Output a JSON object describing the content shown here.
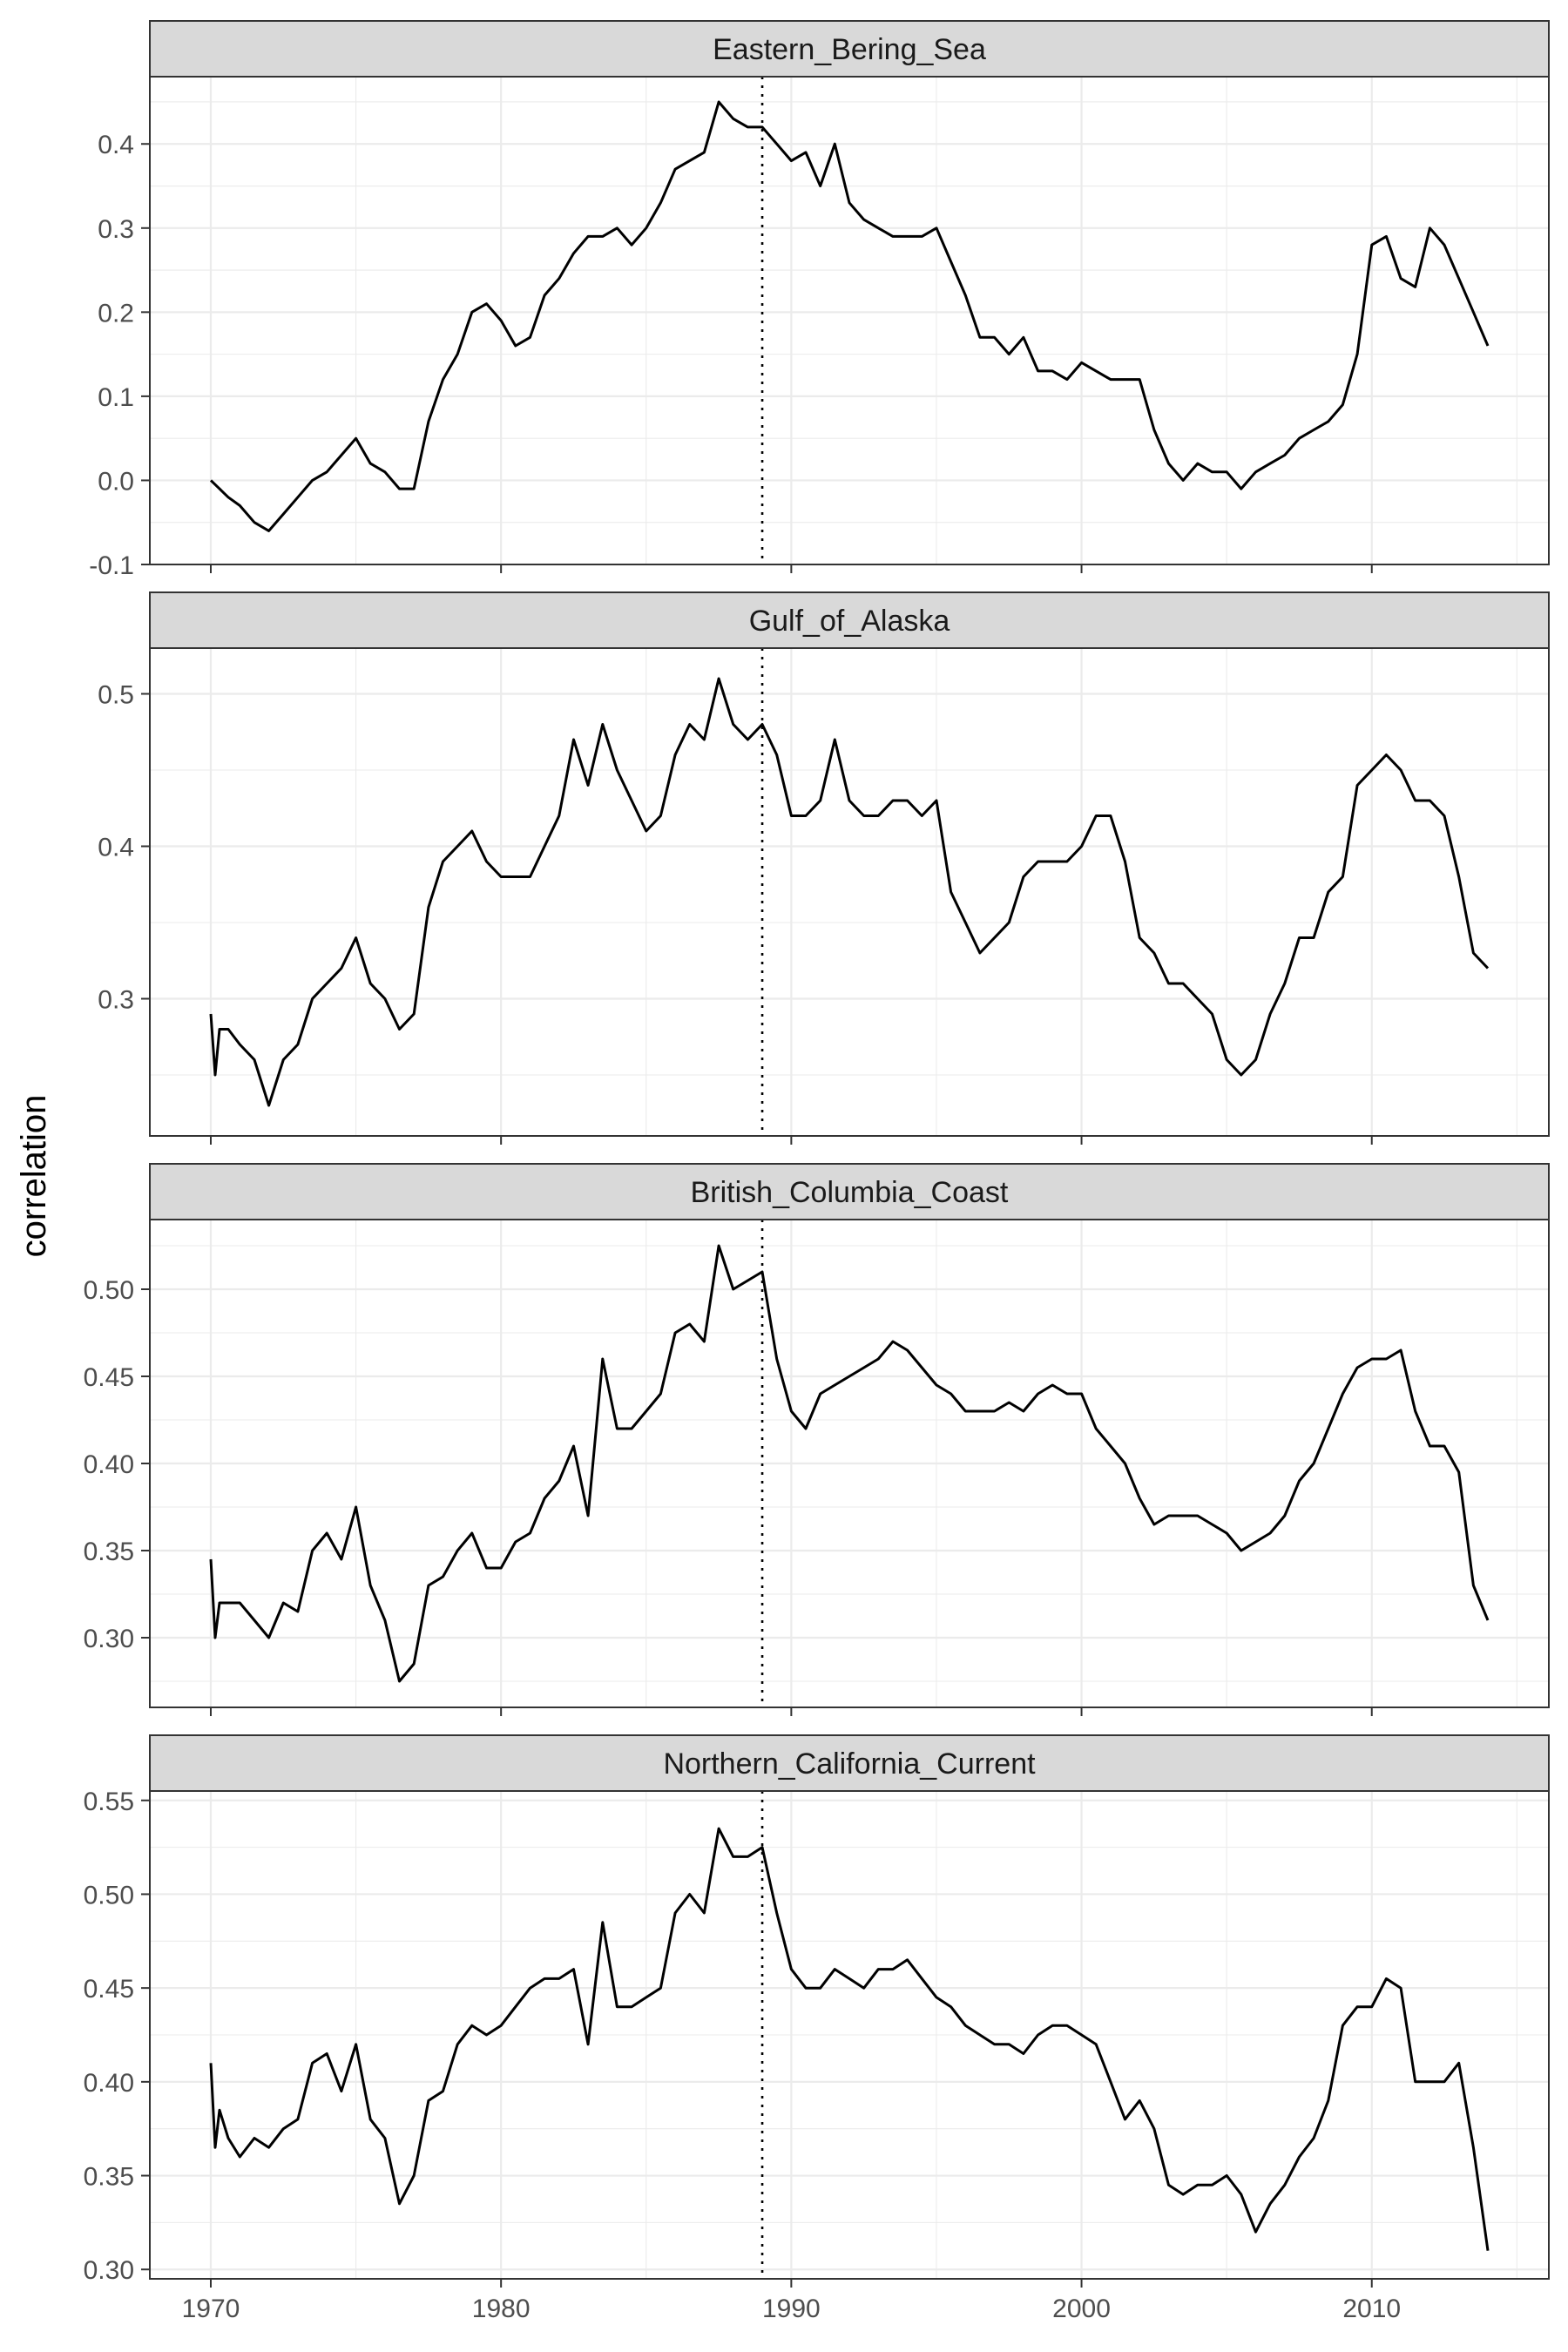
{
  "chart_data": {
    "type": "line",
    "layout": "facet-wrap, 1 column, free y scales",
    "xlabel": "",
    "ylabel": "correlation",
    "xlim": [
      1967.9,
      2016.1
    ],
    "x_ticks": [
      1970,
      1980,
      1990,
      2000,
      2010
    ],
    "vline_x": 1989,
    "vline_style": "dotted",
    "grid": true,
    "theme": "bw",
    "line_color": "#000000",
    "panels": [
      {
        "name": "Eastern_Bering_Sea",
        "ylim": [
          -0.1,
          0.48
        ],
        "y_ticks": [
          -0.1,
          0.0,
          0.1,
          0.2,
          0.3,
          0.4
        ],
        "y_tick_labels": [
          "-0.1",
          "0.0",
          "0.1",
          "0.2",
          "0.3",
          "0.4"
        ],
        "series": [
          {
            "x": [
              1970.0,
              1970.3,
              1970.6,
              1971.0,
              1971.5,
              1972.0,
              1972.5,
              1973.0,
              1973.5,
              1974.0,
              1974.5,
              1975.0,
              1975.5,
              1976.0,
              1976.5,
              1977.0,
              1977.5,
              1978.0,
              1978.5,
              1979.0,
              1979.5,
              1980.0,
              1980.5,
              1981.0,
              1981.5,
              1982.0,
              1982.5,
              1983.0,
              1983.5,
              1984.0,
              1984.5,
              1985.0,
              1985.5,
              1986.0,
              1986.5,
              1987.0,
              1987.5,
              1988.0,
              1988.5,
              1989.0,
              1989.5,
              1990.0,
              1990.5,
              1991.0,
              1991.5,
              1992.0,
              1992.5,
              1993.0,
              1993.5,
              1994.0,
              1994.5,
              1995.0,
              1995.5,
              1996.0,
              1996.5,
              1997.0,
              1997.5,
              1998.0,
              1998.5,
              1999.0,
              1999.5,
              2000.0,
              2000.5,
              2001.0,
              2001.5,
              2002.0,
              2002.5,
              2003.0,
              2003.5,
              2004.0,
              2004.5,
              2005.0,
              2005.5,
              2006.0,
              2006.5,
              2007.0,
              2007.5,
              2008.0,
              2008.5,
              2009.0,
              2009.5,
              2010.0,
              2010.5,
              2011.0,
              2011.5,
              2012.0,
              2012.5,
              2013.0,
              2013.5,
              2014.0
            ],
            "values": [
              0.0,
              -0.01,
              -0.02,
              -0.03,
              -0.05,
              -0.06,
              -0.04,
              -0.02,
              0.0,
              0.01,
              0.03,
              0.05,
              0.02,
              0.01,
              -0.01,
              -0.01,
              0.07,
              0.12,
              0.15,
              0.2,
              0.21,
              0.19,
              0.16,
              0.17,
              0.22,
              0.24,
              0.27,
              0.29,
              0.29,
              0.3,
              0.28,
              0.3,
              0.33,
              0.37,
              0.38,
              0.39,
              0.45,
              0.43,
              0.42,
              0.42,
              0.4,
              0.38,
              0.39,
              0.35,
              0.4,
              0.33,
              0.31,
              0.3,
              0.29,
              0.29,
              0.29,
              0.3,
              0.26,
              0.22,
              0.17,
              0.17,
              0.15,
              0.17,
              0.13,
              0.13,
              0.12,
              0.14,
              0.13,
              0.12,
              0.12,
              0.12,
              0.06,
              0.02,
              0.0,
              0.02,
              0.01,
              0.01,
              -0.01,
              0.01,
              0.02,
              0.03,
              0.05,
              0.06,
              0.07,
              0.09,
              0.15,
              0.28,
              0.29,
              0.24,
              0.23,
              0.3,
              0.28,
              0.24,
              0.2,
              0.16
            ]
          }
        ]
      },
      {
        "name": "Gulf_of_Alaska",
        "ylim": [
          0.21,
          0.53
        ],
        "y_ticks": [
          0.3,
          0.4,
          0.5
        ],
        "y_tick_labels": [
          "0.3",
          "0.4",
          "0.5"
        ],
        "series": [
          {
            "x": [
              1970.0,
              1970.15,
              1970.3,
              1970.6,
              1971.0,
              1971.5,
              1972.0,
              1972.5,
              1973.0,
              1973.5,
              1974.0,
              1974.5,
              1975.0,
              1975.5,
              1976.0,
              1976.5,
              1977.0,
              1977.5,
              1978.0,
              1978.5,
              1979.0,
              1979.5,
              1980.0,
              1980.5,
              1981.0,
              1981.5,
              1982.0,
              1982.5,
              1983.0,
              1983.5,
              1984.0,
              1984.5,
              1985.0,
              1985.5,
              1986.0,
              1986.5,
              1987.0,
              1987.5,
              1988.0,
              1988.5,
              1989.0,
              1989.5,
              1990.0,
              1990.5,
              1991.0,
              1991.5,
              1992.0,
              1992.5,
              1993.0,
              1993.5,
              1994.0,
              1994.5,
              1995.0,
              1995.5,
              1996.0,
              1996.5,
              1997.0,
              1997.5,
              1998.0,
              1998.5,
              1999.0,
              1999.5,
              2000.0,
              2000.5,
              2001.0,
              2001.5,
              2002.0,
              2002.5,
              2003.0,
              2003.5,
              2004.0,
              2004.5,
              2005.0,
              2005.5,
              2006.0,
              2006.5,
              2007.0,
              2007.5,
              2008.0,
              2008.5,
              2009.0,
              2009.5,
              2010.0,
              2010.5,
              2011.0,
              2011.5,
              2012.0,
              2012.5,
              2013.0,
              2013.5,
              2014.0
            ],
            "values": [
              0.29,
              0.25,
              0.28,
              0.28,
              0.27,
              0.26,
              0.23,
              0.26,
              0.27,
              0.3,
              0.31,
              0.32,
              0.34,
              0.31,
              0.3,
              0.28,
              0.29,
              0.36,
              0.39,
              0.4,
              0.41,
              0.39,
              0.38,
              0.38,
              0.38,
              0.4,
              0.42,
              0.47,
              0.44,
              0.48,
              0.45,
              0.43,
              0.41,
              0.42,
              0.46,
              0.48,
              0.47,
              0.51,
              0.48,
              0.47,
              0.48,
              0.46,
              0.42,
              0.42,
              0.43,
              0.47,
              0.43,
              0.42,
              0.42,
              0.43,
              0.43,
              0.42,
              0.43,
              0.37,
              0.35,
              0.33,
              0.34,
              0.35,
              0.38,
              0.39,
              0.39,
              0.39,
              0.4,
              0.42,
              0.42,
              0.39,
              0.34,
              0.33,
              0.31,
              0.31,
              0.3,
              0.29,
              0.26,
              0.25,
              0.26,
              0.29,
              0.31,
              0.34,
              0.34,
              0.37,
              0.38,
              0.44,
              0.45,
              0.46,
              0.45,
              0.43,
              0.43,
              0.42,
              0.38,
              0.33,
              0.32
            ]
          }
        ]
      },
      {
        "name": "British_Columbia_Coast",
        "ylim": [
          0.26,
          0.54
        ],
        "y_ticks": [
          0.3,
          0.35,
          0.4,
          0.45,
          0.5
        ],
        "y_tick_labels": [
          "0.30",
          "0.35",
          "0.40",
          "0.45",
          "0.50"
        ],
        "series": [
          {
            "x": [
              1970.0,
              1970.15,
              1970.3,
              1970.6,
              1971.0,
              1971.5,
              1972.0,
              1972.5,
              1973.0,
              1973.5,
              1974.0,
              1974.5,
              1975.0,
              1975.5,
              1976.0,
              1976.5,
              1977.0,
              1977.5,
              1978.0,
              1978.5,
              1979.0,
              1979.5,
              1980.0,
              1980.5,
              1981.0,
              1981.5,
              1982.0,
              1982.5,
              1983.0,
              1983.5,
              1984.0,
              1984.5,
              1985.0,
              1985.5,
              1986.0,
              1986.5,
              1987.0,
              1987.5,
              1988.0,
              1988.5,
              1989.0,
              1989.5,
              1990.0,
              1990.5,
              1991.0,
              1991.5,
              1992.0,
              1992.5,
              1993.0,
              1993.5,
              1994.0,
              1994.5,
              1995.0,
              1995.5,
              1996.0,
              1996.5,
              1997.0,
              1997.5,
              1998.0,
              1998.5,
              1999.0,
              1999.5,
              2000.0,
              2000.5,
              2001.0,
              2001.5,
              2002.0,
              2002.5,
              2003.0,
              2003.5,
              2004.0,
              2004.5,
              2005.0,
              2005.5,
              2006.0,
              2006.5,
              2007.0,
              2007.5,
              2008.0,
              2008.5,
              2009.0,
              2009.5,
              2010.0,
              2010.5,
              2011.0,
              2011.5,
              2012.0,
              2012.5,
              2013.0,
              2013.5,
              2014.0
            ],
            "values": [
              0.345,
              0.3,
              0.32,
              0.32,
              0.32,
              0.31,
              0.3,
              0.32,
              0.315,
              0.35,
              0.36,
              0.345,
              0.375,
              0.33,
              0.31,
              0.275,
              0.285,
              0.33,
              0.335,
              0.35,
              0.36,
              0.34,
              0.34,
              0.355,
              0.36,
              0.38,
              0.39,
              0.41,
              0.37,
              0.46,
              0.42,
              0.42,
              0.43,
              0.44,
              0.475,
              0.48,
              0.47,
              0.525,
              0.5,
              0.505,
              0.51,
              0.46,
              0.43,
              0.42,
              0.44,
              0.445,
              0.45,
              0.455,
              0.46,
              0.47,
              0.465,
              0.455,
              0.445,
              0.44,
              0.43,
              0.43,
              0.43,
              0.435,
              0.43,
              0.44,
              0.445,
              0.44,
              0.44,
              0.42,
              0.41,
              0.4,
              0.38,
              0.365,
              0.37,
              0.37,
              0.37,
              0.365,
              0.36,
              0.35,
              0.355,
              0.36,
              0.37,
              0.39,
              0.4,
              0.42,
              0.44,
              0.455,
              0.46,
              0.46,
              0.465,
              0.43,
              0.41,
              0.41,
              0.395,
              0.33,
              0.31
            ]
          }
        ]
      },
      {
        "name": "Northern_California_Current",
        "ylim": [
          0.295,
          0.555
        ],
        "y_ticks": [
          0.3,
          0.35,
          0.4,
          0.45,
          0.5,
          0.55
        ],
        "y_tick_labels": [
          "0.30",
          "0.35",
          "0.40",
          "0.45",
          "0.50",
          "0.55"
        ],
        "series": [
          {
            "x": [
              1970.0,
              1970.15,
              1970.3,
              1970.6,
              1971.0,
              1971.5,
              1972.0,
              1972.5,
              1973.0,
              1973.5,
              1974.0,
              1974.5,
              1975.0,
              1975.5,
              1976.0,
              1976.5,
              1977.0,
              1977.5,
              1978.0,
              1978.5,
              1979.0,
              1979.5,
              1980.0,
              1980.5,
              1981.0,
              1981.5,
              1982.0,
              1982.5,
              1983.0,
              1983.5,
              1984.0,
              1984.5,
              1985.0,
              1985.5,
              1986.0,
              1986.5,
              1987.0,
              1987.5,
              1988.0,
              1988.5,
              1989.0,
              1989.5,
              1990.0,
              1990.5,
              1991.0,
              1991.5,
              1992.0,
              1992.5,
              1993.0,
              1993.5,
              1994.0,
              1994.5,
              1995.0,
              1995.5,
              1996.0,
              1996.5,
              1997.0,
              1997.5,
              1998.0,
              1998.5,
              1999.0,
              1999.5,
              2000.0,
              2000.5,
              2001.0,
              2001.5,
              2002.0,
              2002.5,
              2003.0,
              2003.5,
              2004.0,
              2004.5,
              2005.0,
              2005.5,
              2006.0,
              2006.5,
              2007.0,
              2007.5,
              2008.0,
              2008.5,
              2009.0,
              2009.5,
              2010.0,
              2010.5,
              2011.0,
              2011.5,
              2012.0,
              2012.5,
              2013.0,
              2013.5,
              2014.0
            ],
            "values": [
              0.41,
              0.365,
              0.385,
              0.37,
              0.36,
              0.37,
              0.365,
              0.375,
              0.38,
              0.41,
              0.415,
              0.395,
              0.42,
              0.38,
              0.37,
              0.335,
              0.35,
              0.39,
              0.395,
              0.42,
              0.43,
              0.425,
              0.43,
              0.44,
              0.45,
              0.455,
              0.455,
              0.46,
              0.42,
              0.485,
              0.44,
              0.44,
              0.445,
              0.45,
              0.49,
              0.5,
              0.49,
              0.535,
              0.52,
              0.52,
              0.525,
              0.49,
              0.46,
              0.45,
              0.45,
              0.46,
              0.455,
              0.45,
              0.46,
              0.46,
              0.465,
              0.455,
              0.445,
              0.44,
              0.43,
              0.425,
              0.42,
              0.42,
              0.415,
              0.425,
              0.43,
              0.43,
              0.425,
              0.42,
              0.4,
              0.38,
              0.39,
              0.375,
              0.345,
              0.34,
              0.345,
              0.345,
              0.35,
              0.34,
              0.32,
              0.335,
              0.345,
              0.36,
              0.37,
              0.39,
              0.43,
              0.44,
              0.44,
              0.455,
              0.45,
              0.4,
              0.4,
              0.4,
              0.41,
              0.365,
              0.31
            ]
          }
        ]
      }
    ]
  }
}
